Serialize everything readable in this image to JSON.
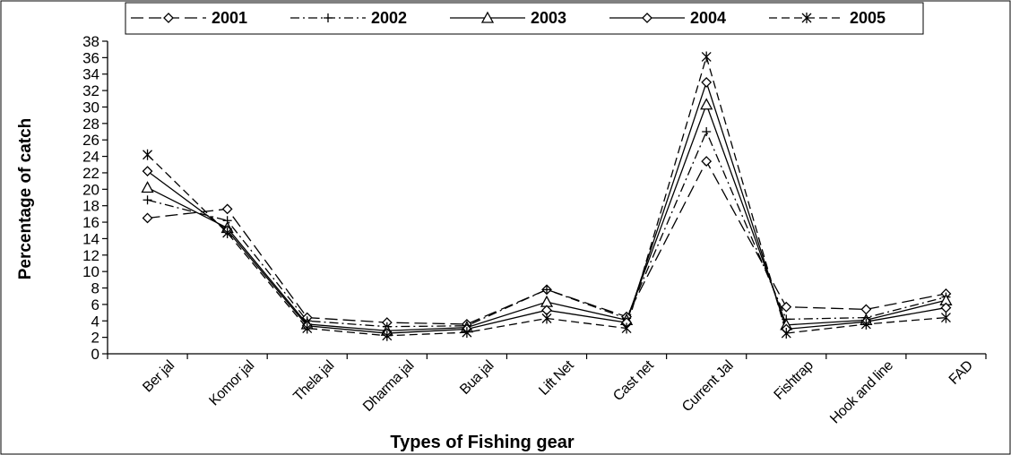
{
  "chart_data": {
    "type": "line",
    "title": "",
    "xlabel": "Types of Fishing gear",
    "ylabel": "Percentage of catch",
    "ylim": [
      0,
      38
    ],
    "ytick_step": 2,
    "grid": false,
    "legend_position": "top",
    "categories": [
      "Ber jal",
      "Komor jal",
      "Thela jal",
      "Dharma jal",
      "Bua jal",
      "Lift Net",
      "Cast net",
      "Current Jal",
      "Fishtrap",
      "Hook and line",
      "FAD"
    ],
    "series": [
      {
        "name": "2001",
        "marker": "diamond",
        "dash": "long-dash",
        "color": "#000000",
        "values": [
          16.5,
          17.6,
          4.4,
          3.8,
          3.6,
          7.8,
          4.5,
          23.4,
          5.7,
          5.4,
          7.3
        ]
      },
      {
        "name": "2002",
        "marker": "plus",
        "dash": "dash-dot",
        "color": "#000000",
        "values": [
          18.7,
          16.2,
          4.0,
          3.3,
          3.4,
          7.8,
          4.3,
          27.0,
          4.2,
          4.4,
          6.9
        ]
      },
      {
        "name": "2003",
        "marker": "triangle",
        "dash": "solid",
        "color": "#000000",
        "values": [
          20.2,
          15.3,
          3.6,
          2.8,
          3.2,
          6.3,
          4.1,
          30.3,
          3.5,
          4.1,
          6.5
        ]
      },
      {
        "name": "2004",
        "marker": "diamond",
        "dash": "solid",
        "color": "#000000",
        "values": [
          22.2,
          15.0,
          3.4,
          2.5,
          3.0,
          5.3,
          3.8,
          33.0,
          3.0,
          3.9,
          5.6
        ]
      },
      {
        "name": "2005",
        "marker": "asterisk",
        "dash": "dash",
        "color": "#000000",
        "values": [
          24.2,
          14.7,
          3.1,
          2.2,
          2.6,
          4.3,
          3.1,
          36.1,
          2.5,
          3.6,
          4.4
        ]
      }
    ]
  }
}
